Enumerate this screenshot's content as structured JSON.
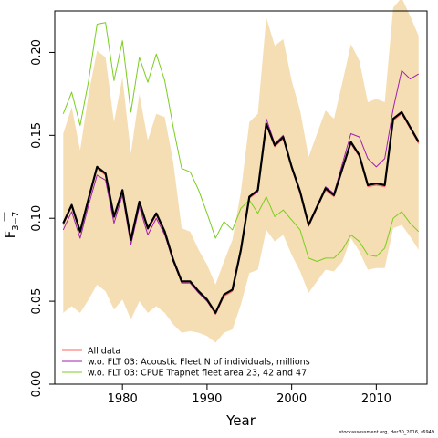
{
  "chart_data": {
    "type": "line",
    "xlabel": "Year",
    "ylabel": "F̄3−7",
    "ylabel_main": "F",
    "ylabel_sub": "3−7",
    "xlim": [
      1972,
      2016
    ],
    "ylim": [
      0,
      0.225
    ],
    "x_ticks": [
      1980,
      1990,
      2000,
      2010
    ],
    "y_ticks": [
      0.0,
      0.05,
      0.1,
      0.15,
      0.2
    ],
    "y_tick_labels": [
      "0.00",
      "0.05",
      "0.10",
      "0.15",
      "0.20"
    ],
    "grid": false,
    "legend_position": "bottom-left",
    "x": [
      1973,
      1974,
      1975,
      1976,
      1977,
      1978,
      1979,
      1980,
      1981,
      1982,
      1983,
      1984,
      1985,
      1986,
      1987,
      1988,
      1989,
      1990,
      1991,
      1992,
      1993,
      1994,
      1995,
      1996,
      1997,
      1998,
      1999,
      2000,
      2001,
      2002,
      2003,
      2004,
      2005,
      2006,
      2007,
      2008,
      2009,
      2010,
      2011,
      2012,
      2013,
      2014,
      2015
    ],
    "band": {
      "color": "#F5DEB3",
      "lower": [
        0.043,
        0.047,
        0.043,
        0.051,
        0.06,
        0.056,
        0.045,
        0.051,
        0.039,
        0.05,
        0.043,
        0.047,
        0.043,
        0.036,
        0.031,
        0.032,
        0.031,
        0.029,
        0.025,
        0.031,
        0.033,
        0.048,
        0.067,
        0.069,
        0.093,
        0.086,
        0.09,
        0.078,
        0.068,
        0.055,
        0.062,
        0.069,
        0.068,
        0.074,
        0.088,
        0.08,
        0.069,
        0.07,
        0.07,
        0.094,
        0.096,
        0.089,
        0.081
      ],
      "upper": [
        0.151,
        0.167,
        0.141,
        0.175,
        0.201,
        0.197,
        0.158,
        0.185,
        0.139,
        0.175,
        0.147,
        0.163,
        0.161,
        0.134,
        0.094,
        0.092,
        0.081,
        0.072,
        0.06,
        0.074,
        0.087,
        0.116,
        0.158,
        0.163,
        0.221,
        0.204,
        0.208,
        0.183,
        0.165,
        0.137,
        0.151,
        0.165,
        0.16,
        0.182,
        0.205,
        0.195,
        0.17,
        0.172,
        0.17,
        0.227,
        0.233,
        0.222,
        0.21
      ]
    },
    "series": [
      {
        "name": "All data",
        "color": "#000000",
        "lineWidth": 2.2,
        "values": [
          0.097,
          0.108,
          0.092,
          0.112,
          0.131,
          0.127,
          0.101,
          0.117,
          0.087,
          0.11,
          0.094,
          0.103,
          0.092,
          0.075,
          0.062,
          0.062,
          0.056,
          0.051,
          0.043,
          0.054,
          0.057,
          0.081,
          0.113,
          0.117,
          0.157,
          0.144,
          0.149,
          0.131,
          0.116,
          0.096,
          0.107,
          0.118,
          0.114,
          0.13,
          0.146,
          0.138,
          0.12,
          0.121,
          0.12,
          0.16,
          0.164,
          0.155,
          0.146
        ]
      },
      {
        "name": "All data",
        "color": "#FF6060",
        "lineWidth": 1,
        "legend": true,
        "values": [
          0.096,
          0.107,
          0.091,
          0.111,
          0.13,
          0.126,
          0.1,
          0.116,
          0.086,
          0.109,
          0.093,
          0.102,
          0.091,
          0.074,
          0.061,
          0.061,
          0.055,
          0.05,
          0.042,
          0.053,
          0.056,
          0.08,
          0.112,
          0.116,
          0.156,
          0.143,
          0.148,
          0.13,
          0.115,
          0.095,
          0.106,
          0.117,
          0.113,
          0.129,
          0.145,
          0.137,
          0.119,
          0.12,
          0.119,
          0.159,
          0.163,
          0.154,
          0.145
        ]
      },
      {
        "name": "w.o. FLT 03: Acoustic Fleet   N of individuals, millions",
        "color": "#A020B0",
        "lineWidth": 1,
        "legend": true,
        "values": [
          0.093,
          0.104,
          0.088,
          0.108,
          0.126,
          0.123,
          0.097,
          0.114,
          0.084,
          0.107,
          0.09,
          0.1,
          0.09,
          0.074,
          0.061,
          0.061,
          0.055,
          0.05,
          0.043,
          0.054,
          0.057,
          0.081,
          0.113,
          0.116,
          0.16,
          0.145,
          0.15,
          0.131,
          0.117,
          0.096,
          0.107,
          0.119,
          0.115,
          0.133,
          0.151,
          0.149,
          0.136,
          0.131,
          0.136,
          0.166,
          0.189,
          0.184,
          0.187
        ]
      },
      {
        "name": "w.o. FLT 03: CPUE Trapnet fleet area 23, 42 and 47",
        "color": "#7CCD20",
        "lineWidth": 1,
        "legend": true,
        "values": [
          0.163,
          0.176,
          0.156,
          0.183,
          0.217,
          0.218,
          0.183,
          0.207,
          0.164,
          0.197,
          0.182,
          0.199,
          0.183,
          0.155,
          0.13,
          0.128,
          0.117,
          0.103,
          0.088,
          0.098,
          0.093,
          0.106,
          0.111,
          0.103,
          0.113,
          0.101,
          0.105,
          0.099,
          0.093,
          0.076,
          0.074,
          0.076,
          0.076,
          0.081,
          0.09,
          0.086,
          0.078,
          0.077,
          0.082,
          0.1,
          0.104,
          0.097,
          0.092
        ]
      }
    ],
    "legend_entries": [
      {
        "label": "All data",
        "color": "#FF6060"
      },
      {
        "label": "w.o. FLT 03: Acoustic Fleet   N of individuals, millions",
        "color": "#A020B0"
      },
      {
        "label": "w.o. FLT 03: CPUE Trapnet fleet area 23, 42 and 47",
        "color": "#7CCD20"
      }
    ]
  },
  "footer": "stockassessment.org, Her30_2016, r6949"
}
